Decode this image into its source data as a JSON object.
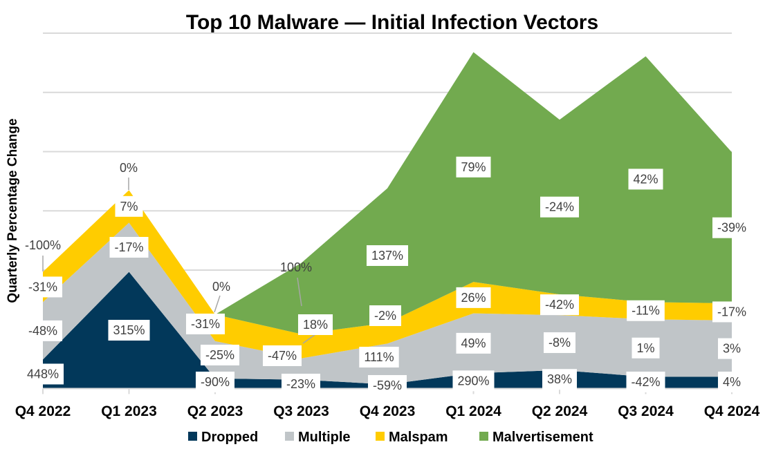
{
  "chart_data": {
    "type": "area",
    "stacked": true,
    "title": "Top 10 Malware — Initial Infection Vectors",
    "xlabel": "",
    "ylabel": "Quarterly Percentage Change",
    "categories": [
      "Q4 2022",
      "Q1 2023",
      "Q2 2023",
      "Q3 2023",
      "Q4 2023",
      "Q1 2024",
      "Q2 2024",
      "Q3 2024",
      "Q4 2024"
    ],
    "ylim": [
      0,
      60
    ],
    "y_tick_labels_shown": false,
    "grid": true,
    "legend": "bottom",
    "series": [
      {
        "name": "Dropped",
        "color": "#02385a",
        "values": [
          4.9,
          19.7,
          1.7,
          1.5,
          0.7,
          2.6,
          3.1,
          2.0,
          2.0
        ],
        "labels": [
          "448%",
          "315%",
          "-90%",
          "-23%",
          "-59%",
          "290%",
          "38%",
          "-42%",
          "4%"
        ]
      },
      {
        "name": "Multiple",
        "color": "#c0c5c8",
        "values": [
          9.7,
          8.3,
          6.3,
          3.6,
          6.9,
          10.1,
          9.3,
          9.7,
          9.5
        ],
        "labels": [
          "-48%",
          "-17%",
          "-25%",
          "-47%",
          "111%",
          "49%",
          "-8%",
          "1%",
          "3%"
        ]
      },
      {
        "name": "Malspam",
        "color": "#ffcc00",
        "values": [
          5.1,
          5.5,
          4.5,
          4.1,
          3.5,
          5.3,
          3.5,
          2.9,
          2.9
        ],
        "labels": [
          "-31%",
          "7%",
          "-31%",
          "18%",
          "-2%",
          "26%",
          "-42%",
          "-11%",
          "-17%"
        ]
      },
      {
        "name": "Malvertisement",
        "color": "#72aa4f",
        "values": [
          0,
          0,
          0,
          12.0,
          22.7,
          38.8,
          29.5,
          41.5,
          25.5
        ],
        "labels": [
          "-100%",
          "0%",
          "0%",
          "100%",
          "137%",
          "79%",
          "-24%",
          "42%",
          "-39%"
        ]
      }
    ]
  }
}
